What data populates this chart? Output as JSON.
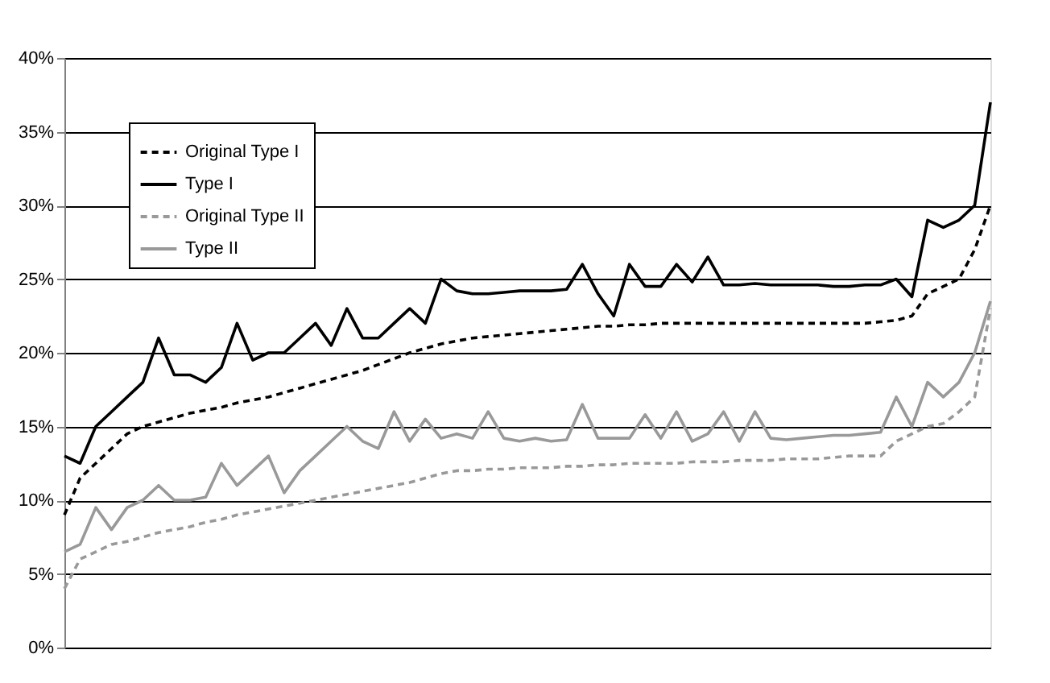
{
  "chart_data": {
    "type": "line",
    "categories": [
      null,
      null,
      null,
      null,
      null,
      null,
      null,
      null,
      null,
      null,
      null,
      null,
      null,
      null,
      null,
      null,
      null,
      null,
      null,
      null,
      null,
      null,
      null,
      null,
      null,
      null,
      null,
      null,
      null,
      null,
      null,
      null,
      null,
      null,
      null,
      null,
      null,
      null,
      null,
      null,
      null,
      null,
      null,
      null,
      null,
      null,
      null,
      null,
      null,
      null,
      null,
      null,
      null,
      null,
      null,
      null,
      null,
      null,
      null,
      null
    ],
    "series": [
      {
        "name": "Original Type I",
        "color": "#000000",
        "line_style": "dashed",
        "values": [
          9,
          11.5,
          12.5,
          13.5,
          14.5,
          15,
          15.3,
          15.6,
          15.9,
          16.1,
          16.3,
          16.6,
          16.8,
          17,
          17.3,
          17.6,
          17.9,
          18.2,
          18.5,
          18.8,
          19.2,
          19.6,
          20,
          20.3,
          20.6,
          20.8,
          21,
          21.1,
          21.2,
          21.3,
          21.4,
          21.5,
          21.6,
          21.7,
          21.8,
          21.8,
          21.9,
          21.9,
          22,
          22,
          22,
          22,
          22,
          22,
          22,
          22,
          22,
          22,
          22,
          22,
          22,
          22,
          22.1,
          22.2,
          22.5,
          24,
          24.5,
          25,
          27,
          30
        ]
      },
      {
        "name": "Type I",
        "color": "#000000",
        "line_style": "solid",
        "values": [
          13,
          12.5,
          15,
          16,
          17,
          18,
          21,
          18.5,
          18.5,
          18,
          19,
          22,
          19.5,
          20,
          20,
          21,
          22,
          20.5,
          23,
          21,
          21,
          22,
          23,
          22,
          25,
          24.2,
          24,
          24,
          24.1,
          24.2,
          24.2,
          24.2,
          24.3,
          26,
          24,
          22.5,
          26,
          24.5,
          24.5,
          26,
          24.8,
          26.5,
          24.6,
          24.6,
          24.7,
          24.6,
          24.6,
          24.6,
          24.6,
          24.5,
          24.5,
          24.6,
          24.6,
          25,
          23.8,
          29,
          28.5,
          29,
          30,
          37
        ]
      },
      {
        "name": "Original Type II",
        "color": "#999999",
        "line_style": "dashed",
        "values": [
          4,
          6,
          6.5,
          7,
          7.2,
          7.5,
          7.8,
          8,
          8.2,
          8.5,
          8.7,
          9,
          9.2,
          9.4,
          9.6,
          9.8,
          10,
          10.2,
          10.4,
          10.6,
          10.8,
          11,
          11.2,
          11.5,
          11.8,
          12,
          12,
          12.1,
          12.1,
          12.2,
          12.2,
          12.2,
          12.3,
          12.3,
          12.4,
          12.4,
          12.5,
          12.5,
          12.5,
          12.5,
          12.6,
          12.6,
          12.6,
          12.7,
          12.7,
          12.7,
          12.8,
          12.8,
          12.8,
          12.9,
          13,
          13,
          13,
          14,
          14.5,
          15,
          15.2,
          16,
          17,
          23
        ]
      },
      {
        "name": "Type II",
        "color": "#999999",
        "line_style": "solid",
        "values": [
          6.5,
          7,
          9.5,
          8,
          9.5,
          10,
          11,
          10,
          10,
          10.2,
          12.5,
          11,
          12,
          13,
          10.5,
          12,
          13,
          14,
          15,
          14,
          13.5,
          16,
          14,
          15.5,
          14.2,
          14.5,
          14.2,
          16,
          14.2,
          14,
          14.2,
          14,
          14.1,
          16.5,
          14.2,
          14.2,
          14.2,
          15.8,
          14.2,
          16,
          14,
          14.5,
          16,
          14,
          16,
          14.2,
          14.1,
          14.2,
          14.3,
          14.4,
          14.4,
          14.5,
          14.6,
          17,
          15,
          18,
          17,
          18,
          20,
          23.5
        ]
      }
    ],
    "ylim": [
      0,
      40
    ],
    "yticks": [
      {
        "value": 0,
        "label": "0%"
      },
      {
        "value": 5,
        "label": "5%"
      },
      {
        "value": 10,
        "label": "10%"
      },
      {
        "value": 15,
        "label": "15%"
      },
      {
        "value": 20,
        "label": "20%"
      },
      {
        "value": 25,
        "label": "25%"
      },
      {
        "value": 30,
        "label": "30%"
      },
      {
        "value": 35,
        "label": "35%"
      },
      {
        "value": 40,
        "label": "40%"
      }
    ],
    "grid": "y",
    "legend": "top left",
    "tick_labels": "y"
  }
}
